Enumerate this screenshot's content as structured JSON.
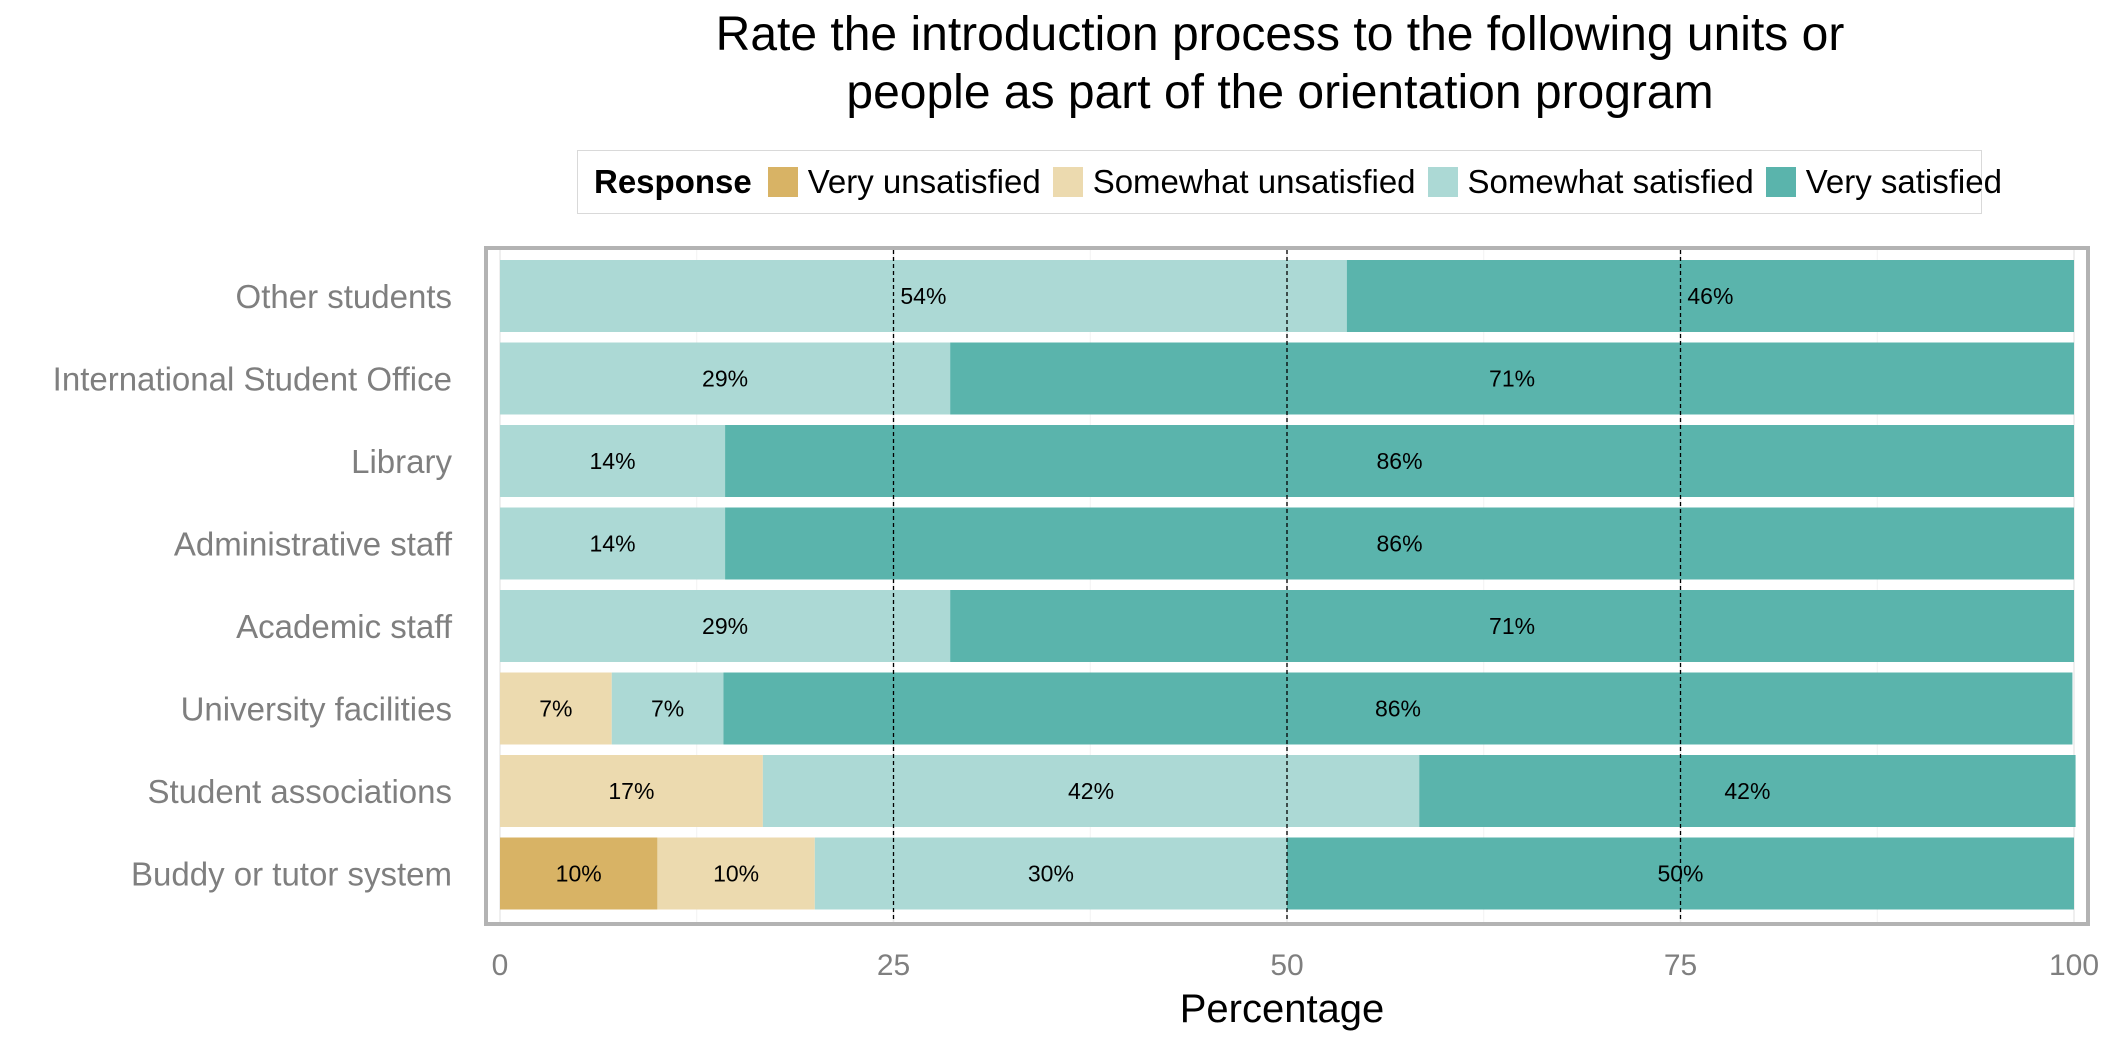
{
  "chart_data": {
    "type": "bar",
    "orientation": "horizontal",
    "stacked": true,
    "title_lines": [
      "Rate the introduction process to the following units or",
      "people as part of the orientation program"
    ],
    "xlabel": "Percentage",
    "ylabel": "",
    "xlim": [
      0,
      100
    ],
    "xticks": [
      0,
      25,
      50,
      75,
      100
    ],
    "reference_lines": [
      25,
      50,
      75
    ],
    "grid": true,
    "legend": {
      "title": "Response",
      "position": "top"
    },
    "categories": [
      "Other students",
      "International Student Office",
      "Library",
      "Administrative staff",
      "Academic staff",
      "University facilities",
      "Student associations",
      "Buddy or tutor system"
    ],
    "series": [
      {
        "name": "Very unsatisfied",
        "color": "#d8b365",
        "values": [
          0,
          0,
          0,
          0,
          0,
          0,
          0,
          10
        ],
        "labels": [
          "",
          "",
          "",
          "",
          "",
          "",
          "",
          "10%"
        ]
      },
      {
        "name": "Somewhat unsatisfied",
        "color": "#ecdaaf",
        "values": [
          0,
          0,
          0,
          0,
          0,
          7.1,
          16.7,
          10
        ],
        "labels": [
          "",
          "",
          "",
          "",
          "",
          "7%",
          "17%",
          "10%"
        ]
      },
      {
        "name": "Somewhat satisfied",
        "color": "#acd9d5",
        "values": [
          53.8,
          28.6,
          14.3,
          14.3,
          28.6,
          7.1,
          41.7,
          30
        ],
        "labels": [
          "54%",
          "29%",
          "14%",
          "14%",
          "29%",
          "7%",
          "42%",
          "30%"
        ]
      },
      {
        "name": "Very satisfied",
        "color": "#5ab4ac",
        "values": [
          46.2,
          71.4,
          85.7,
          85.7,
          71.4,
          85.7,
          41.7,
          50
        ],
        "labels": [
          "46%",
          "71%",
          "86%",
          "86%",
          "71%",
          "86%",
          "42%",
          "50%"
        ]
      }
    ]
  }
}
